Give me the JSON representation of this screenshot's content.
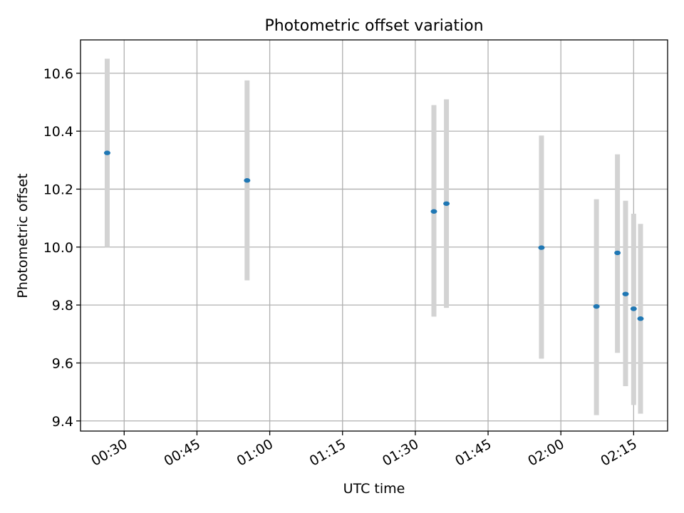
{
  "chart_data": {
    "type": "scatter",
    "title": "Photometric offset variation",
    "xlabel": "UTC time",
    "ylabel": "Photometric offset",
    "xlim": [
      "00:21",
      "02:22"
    ],
    "ylim": [
      9.365,
      10.715
    ],
    "grid": true,
    "x_ticks": [
      "00:30",
      "00:45",
      "01:00",
      "01:15",
      "01:30",
      "01:45",
      "02:00",
      "02:15"
    ],
    "y_ticks": [
      "9.4",
      "9.6",
      "9.8",
      "10.0",
      "10.2",
      "10.4",
      "10.6"
    ],
    "points": [
      {
        "x": "00:26:30",
        "y": 10.325,
        "err_low": 10.0,
        "err_high": 10.65
      },
      {
        "x": "00:55:20",
        "y": 10.23,
        "err_low": 9.885,
        "err_high": 10.575
      },
      {
        "x": "01:33:50",
        "y": 10.123,
        "err_low": 9.76,
        "err_high": 10.49
      },
      {
        "x": "01:36:25",
        "y": 10.15,
        "err_low": 9.79,
        "err_high": 10.51
      },
      {
        "x": "01:56:00",
        "y": 9.998,
        "err_low": 9.615,
        "err_high": 10.385
      },
      {
        "x": "02:07:20",
        "y": 9.795,
        "err_low": 9.42,
        "err_high": 10.165
      },
      {
        "x": "02:11:40",
        "y": 9.98,
        "err_low": 9.635,
        "err_high": 10.32
      },
      {
        "x": "02:13:20",
        "y": 9.838,
        "err_low": 9.52,
        "err_high": 10.16
      },
      {
        "x": "02:15:00",
        "y": 9.787,
        "err_low": 9.455,
        "err_high": 10.115
      },
      {
        "x": "02:16:25",
        "y": 9.753,
        "err_low": 9.425,
        "err_high": 10.08
      }
    ],
    "colors": {
      "marker": "#1f77b4",
      "errorbar": "#d3d3d3",
      "grid": "#b0b0b0",
      "axes": "#000000"
    }
  }
}
